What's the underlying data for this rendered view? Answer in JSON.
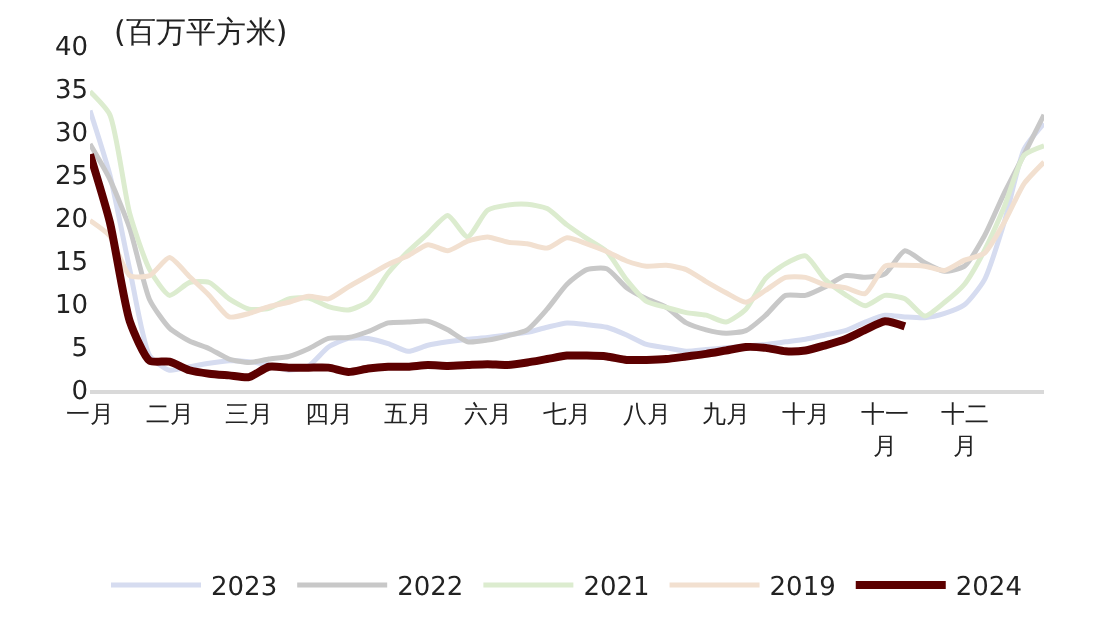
{
  "chart_data": {
    "type": "line",
    "ylabel": "(百万平方米)",
    "categories": [
      "一月",
      null,
      null,
      null,
      "二月",
      null,
      null,
      null,
      "三月",
      null,
      null,
      null,
      "四月",
      null,
      null,
      null,
      "五月",
      null,
      null,
      null,
      "六月",
      null,
      null,
      null,
      "七月",
      null,
      null,
      null,
      "八月",
      null,
      null,
      null,
      "九月",
      null,
      null,
      null,
      "十月",
      null,
      null,
      null,
      "十一月",
      null,
      null,
      null,
      "十二月",
      null,
      null,
      null,
      null
    ],
    "ylim": [
      0,
      40
    ],
    "yticks": [
      0,
      5,
      10,
      15,
      20,
      25,
      30,
      35,
      40
    ],
    "grid": false,
    "legend": "bottom",
    "marker": "none",
    "line_style": "solid",
    "series": [
      {
        "name": "2023",
        "color": "#d6dcf0",
        "values": [
          32.5,
          25,
          14,
          4,
          2.3,
          2.7,
          3.1,
          3.4,
          3.3,
          2.9,
          2.3,
          2.8,
          5,
          6,
          6,
          5.4,
          4.5,
          5.2,
          5.6,
          5.9,
          6.1,
          6.4,
          6.7,
          7.3,
          7.8,
          7.6,
          7.3,
          6.4,
          5.3,
          4.9,
          4.5,
          4.7,
          4.9,
          5.1,
          5.3,
          5.6,
          5.9,
          6.4,
          6.9,
          7.9,
          8.7,
          8.5,
          8.4,
          8.9,
          9.9,
          12.8,
          19.5,
          28,
          31
        ]
      },
      {
        "name": "2022",
        "color": "#c8c8c8",
        "values": [
          28.6,
          24.5,
          18.8,
          10.5,
          7.2,
          5.7,
          4.8,
          3.6,
          3.2,
          3.6,
          3.9,
          4.8,
          6,
          6.1,
          6.8,
          7.8,
          7.9,
          8,
          7,
          5.6,
          5.8,
          6.3,
          7,
          9.4,
          12.3,
          14,
          14.1,
          11.9,
          10.6,
          9.6,
          7.8,
          7,
          6.6,
          6.9,
          8.7,
          11,
          11,
          12,
          13.3,
          13.1,
          13.5,
          16.2,
          14.8,
          13.8,
          14.4,
          17.9,
          22.9,
          27.4,
          32
        ]
      },
      {
        "name": "2021",
        "color": "#dceccf",
        "values": [
          34.7,
          32,
          20.5,
          14,
          11,
          12.5,
          12.5,
          10.6,
          9.4,
          9.5,
          10.6,
          10.7,
          9.7,
          9.3,
          10.3,
          13.6,
          16.1,
          18.2,
          20.3,
          17.8,
          20.9,
          21.5,
          21.6,
          21.1,
          19.2,
          17.6,
          16.1,
          12.8,
          10.3,
          9.6,
          9,
          8.7,
          7.9,
          9.4,
          13,
          14.7,
          15.6,
          12.8,
          11.1,
          9.8,
          11,
          10.6,
          8.6,
          10.2,
          12.3,
          16.2,
          21.3,
          27.3,
          28.4
        ]
      },
      {
        "name": "2019",
        "color": "#f2e0d0",
        "values": [
          19.7,
          17.9,
          13.3,
          13.3,
          15.4,
          13.2,
          11,
          8.5,
          8.9,
          9.7,
          10.2,
          10.9,
          10.6,
          12,
          13.3,
          14.6,
          15.6,
          16.9,
          16.2,
          17.3,
          17.8,
          17.2,
          17,
          16.5,
          17.7,
          17,
          16.1,
          15,
          14.4,
          14.5,
          14,
          12.6,
          11.3,
          10.2,
          11.6,
          13.1,
          13.1,
          12.2,
          11.9,
          11.2,
          14.4,
          14.5,
          14.4,
          13.9,
          15.1,
          15.9,
          19.5,
          24,
          26.5
        ]
      },
      {
        "name": "2024",
        "color": "#5c0000",
        "values": [
          27.4,
          19.5,
          8,
          3.4,
          3.3,
          2.3,
          1.9,
          1.7,
          1.5,
          2.7,
          2.6,
          2.6,
          2.6,
          2.1,
          2.5,
          2.7,
          2.7,
          2.9,
          2.8,
          2.9,
          3,
          2.9,
          3.2,
          3.6,
          4,
          4,
          3.9,
          3.5,
          3.5,
          3.6,
          3.9,
          4.2,
          4.6,
          5,
          4.9,
          4.5,
          4.6,
          5.2,
          5.9,
          7,
          8,
          7.4,
          null,
          null,
          null,
          null,
          null,
          null,
          null
        ]
      }
    ]
  }
}
